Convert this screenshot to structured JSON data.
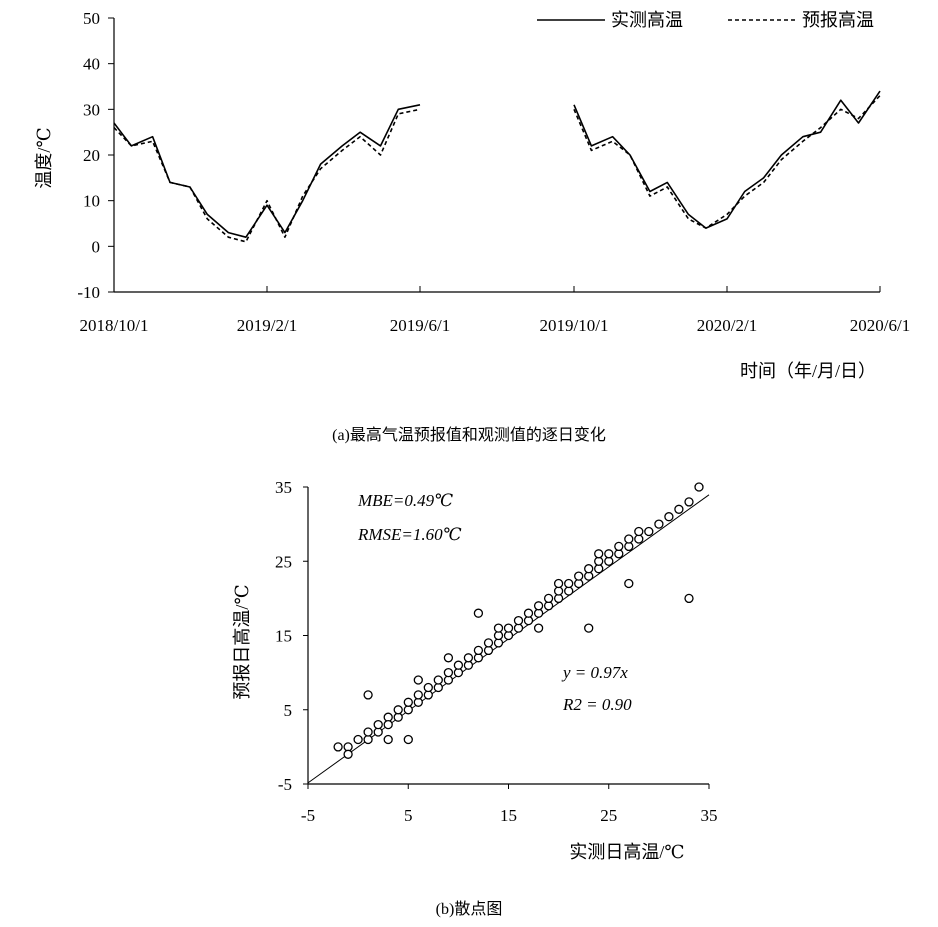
{
  "chart_data": [
    {
      "type": "line",
      "caption": "(a)最高气温预报值和观测值的逐日变化",
      "ylabel": "温度/℃",
      "xlabel": "时间（年/月/日）",
      "ylim": [
        -10,
        50
      ],
      "yticks": [
        -10,
        0,
        10,
        20,
        30,
        40,
        50
      ],
      "xticks": [
        "2018/10/1",
        "2019/2/1",
        "2019/6/1",
        "2019/10/1",
        "2020/2/1",
        "2020/6/1"
      ],
      "legend": {
        "position": "top-right",
        "entries": [
          "实测高温",
          "预报高温"
        ]
      },
      "series": [
        {
          "name": "实测高温",
          "style": "solid",
          "segments": [
            {
              "x": [
                "2018/10/1",
                "2018/10/15",
                "2018/11/1",
                "2018/11/15",
                "2018/12/1",
                "2018/12/15",
                "2019/1/1",
                "2019/1/15",
                "2019/2/1",
                "2019/2/15",
                "2019/3/1",
                "2019/3/15",
                "2019/4/1",
                "2019/4/15",
                "2019/5/1",
                "2019/5/15",
                "2019/6/1"
              ],
              "y": [
                27,
                22,
                24,
                14,
                13,
                7,
                3,
                2,
                9,
                3,
                10,
                18,
                22,
                25,
                22,
                30,
                31
              ]
            },
            {
              "x": [
                "2019/10/1",
                "2019/10/15",
                "2019/11/1",
                "2019/11/15",
                "2019/12/1",
                "2019/12/15",
                "2020/1/1",
                "2020/1/15",
                "2020/2/1",
                "2020/2/15",
                "2020/3/1",
                "2020/3/15",
                "2020/4/1",
                "2020/4/15",
                "2020/5/1",
                "2020/5/15",
                "2020/6/1"
              ],
              "y": [
                31,
                22,
                24,
                20,
                12,
                14,
                7,
                4,
                6,
                12,
                15,
                20,
                24,
                25,
                32,
                27,
                34
              ]
            }
          ]
        },
        {
          "name": "预报高温",
          "style": "dashed",
          "segments": [
            {
              "x": [
                "2018/10/1",
                "2018/10/15",
                "2018/11/1",
                "2018/11/15",
                "2018/12/1",
                "2018/12/15",
                "2019/1/1",
                "2019/1/15",
                "2019/2/1",
                "2019/2/15",
                "2019/3/1",
                "2019/3/15",
                "2019/4/1",
                "2019/4/15",
                "2019/5/1",
                "2019/5/15",
                "2019/6/1"
              ],
              "y": [
                26,
                22,
                23,
                14,
                13,
                6,
                2,
                1,
                10,
                2,
                11,
                17,
                21,
                24,
                20,
                29,
                30
              ]
            },
            {
              "x": [
                "2019/10/1",
                "2019/10/15",
                "2019/11/1",
                "2019/11/15",
                "2019/12/1",
                "2019/12/15",
                "2020/1/1",
                "2020/1/15",
                "2020/2/1",
                "2020/2/15",
                "2020/3/1",
                "2020/3/15",
                "2020/4/1",
                "2020/4/15",
                "2020/5/1",
                "2020/5/15",
                "2020/6/1"
              ],
              "y": [
                30,
                21,
                23,
                20,
                11,
                13,
                6,
                4,
                7,
                11,
                14,
                19,
                23,
                26,
                30,
                28,
                33
              ]
            }
          ]
        }
      ]
    },
    {
      "type": "scatter",
      "caption": "(b)散点图",
      "xlabel": "实测日高温/℃",
      "ylabel": "预报日高温/℃",
      "xlim": [
        -5,
        35
      ],
      "ylim": [
        -5,
        35
      ],
      "xticks": [
        -5,
        5,
        15,
        25,
        35
      ],
      "yticks": [
        -5,
        5,
        15,
        25,
        35
      ],
      "annotations": {
        "mbe": "MBE=0.49℃",
        "rmse": "RMSE=1.60℃",
        "fit": "y = 0.97x",
        "r2": "R2 = 0.90"
      },
      "fit_line": {
        "slope": 0.97,
        "intercept": 0
      },
      "points": {
        "x": [
          -2,
          -1,
          0,
          1,
          1,
          2,
          2,
          3,
          3,
          4,
          4,
          5,
          5,
          6,
          6,
          7,
          7,
          8,
          8,
          9,
          9,
          10,
          10,
          11,
          11,
          12,
          12,
          13,
          13,
          14,
          14,
          15,
          15,
          16,
          16,
          17,
          17,
          18,
          18,
          19,
          19,
          20,
          20,
          21,
          21,
          22,
          22,
          23,
          23,
          24,
          24,
          25,
          25,
          26,
          26,
          27,
          27,
          28,
          28,
          29,
          30,
          31,
          32,
          33,
          34,
          1,
          5,
          12,
          27,
          33,
          23,
          24,
          -1,
          6,
          9,
          14,
          18,
          20,
          3
        ],
        "y": [
          0,
          0,
          1,
          1,
          2,
          2,
          3,
          4,
          3,
          4,
          5,
          5,
          6,
          6,
          7,
          7,
          8,
          8,
          9,
          9,
          10,
          10,
          11,
          11,
          12,
          12,
          13,
          13,
          14,
          14,
          15,
          15,
          16,
          16,
          17,
          17,
          18,
          18,
          19,
          19,
          20,
          20,
          21,
          21,
          22,
          22,
          23,
          23,
          24,
          24,
          25,
          25,
          26,
          26,
          27,
          27,
          28,
          28,
          29,
          29,
          30,
          31,
          32,
          33,
          35,
          7,
          1,
          18,
          22,
          20,
          16,
          26,
          -1,
          9,
          12,
          16,
          16,
          22,
          1
        ]
      }
    }
  ]
}
